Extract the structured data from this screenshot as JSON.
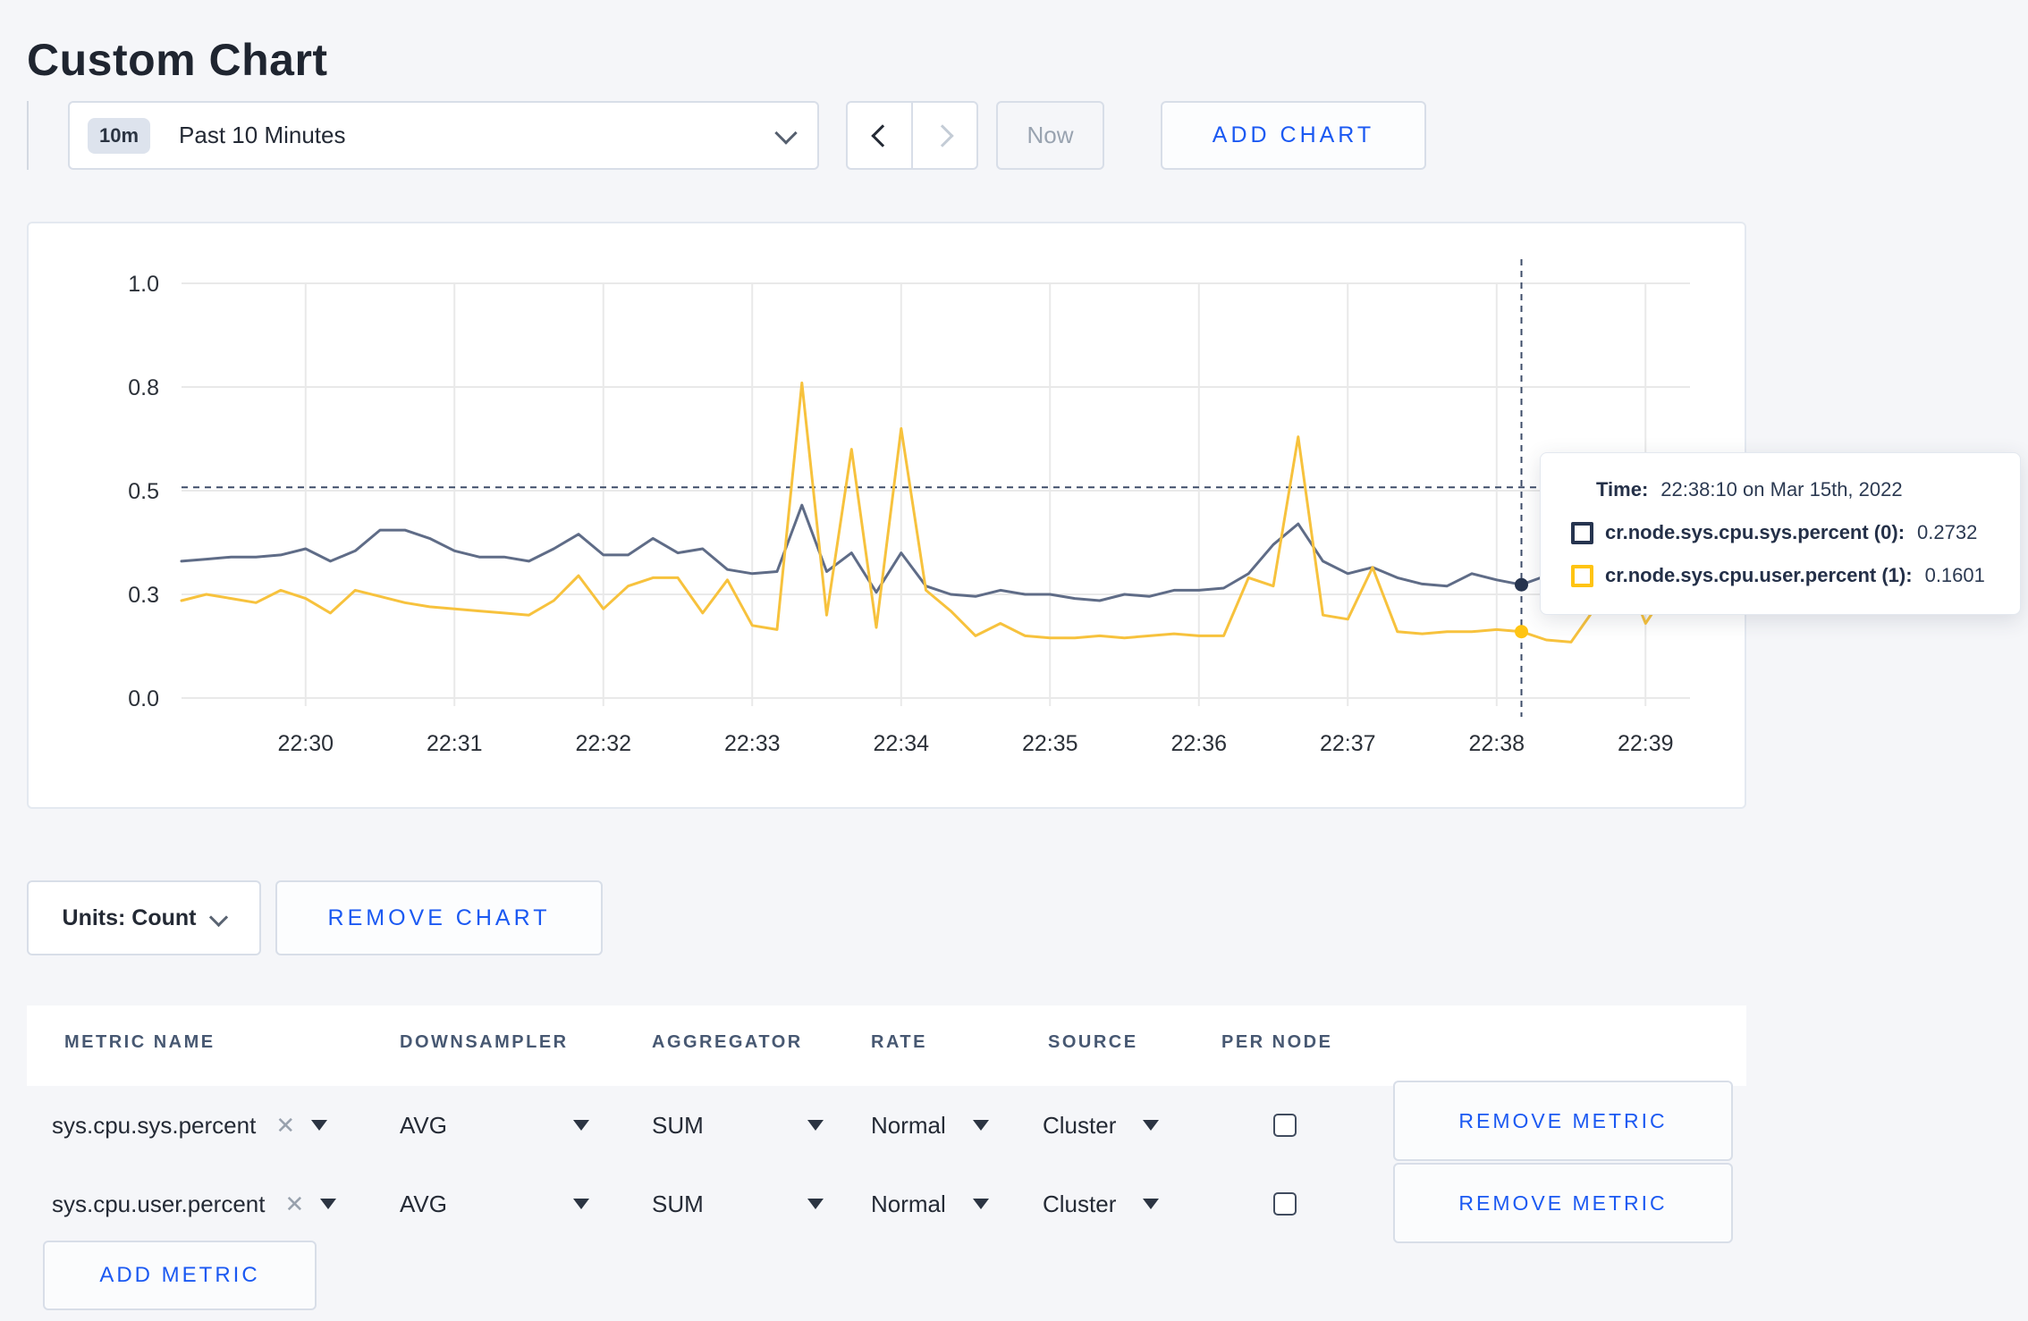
{
  "page": {
    "title": "Custom Chart"
  },
  "colors": {
    "accent_blue": "#1b59f2",
    "crosshair": "#3e4d69",
    "grid": "#e9e9e9"
  },
  "toolbar": {
    "time_selector": {
      "badge": "10m",
      "label": "Past 10 Minutes"
    },
    "now_button": "Now",
    "add_chart_button": "ADD CHART"
  },
  "chart_controls": {
    "units_button": "Units: Count",
    "remove_chart_button": "REMOVE CHART"
  },
  "tooltip": {
    "time_label": "Time:",
    "time_value": "22:38:10 on Mar 15th, 2022",
    "rows": [
      {
        "label": "cr.node.sys.cpu.sys.percent (0):",
        "value": "0.2732"
      },
      {
        "label": "cr.node.sys.cpu.user.percent (1):",
        "value": "0.1601"
      }
    ]
  },
  "metrics_table": {
    "headers": [
      "METRIC NAME",
      "DOWNSAMPLER",
      "AGGREGATOR",
      "RATE",
      "SOURCE",
      "PER NODE"
    ],
    "rows": [
      {
        "metric_name": "sys.cpu.sys.percent",
        "clear": "✕",
        "downsampler": "AVG",
        "aggregator": "SUM",
        "rate": "Normal",
        "source": "Cluster",
        "per_node_checked": false,
        "remove_button": "REMOVE METRIC"
      },
      {
        "metric_name": "sys.cpu.user.percent",
        "clear": "✕",
        "downsampler": "AVG",
        "aggregator": "SUM",
        "rate": "Normal",
        "source": "Cluster",
        "per_node_checked": false,
        "remove_button": "REMOVE METRIC"
      }
    ],
    "add_metric_button": "ADD METRIC"
  },
  "chart_data": {
    "type": "line",
    "title": "",
    "legend": "none",
    "grid": true,
    "x_axis": {
      "domain_seconds": [
        0,
        600
      ],
      "ticks": [
        {
          "label": "22:30",
          "seconds": 50
        },
        {
          "label": "22:31",
          "seconds": 110
        },
        {
          "label": "22:32",
          "seconds": 170
        },
        {
          "label": "22:33",
          "seconds": 230
        },
        {
          "label": "22:34",
          "seconds": 290
        },
        {
          "label": "22:35",
          "seconds": 350
        },
        {
          "label": "22:36",
          "seconds": 410
        },
        {
          "label": "22:37",
          "seconds": 470
        },
        {
          "label": "22:38",
          "seconds": 530
        },
        {
          "label": "22:39",
          "seconds": 590
        }
      ]
    },
    "y_axis": {
      "range": [
        0,
        1
      ],
      "ticks": [
        {
          "label": "0.0",
          "value": 0
        },
        {
          "label": "0.3",
          "value": 0.25
        },
        {
          "label": "0.5",
          "value": 0.5
        },
        {
          "label": "0.8",
          "value": 0.75
        },
        {
          "label": "1.0",
          "value": 1
        }
      ]
    },
    "sample_interval_seconds": 10,
    "series": [
      {
        "name": "cr.node.sys.cpu.sys.percent",
        "color": "#5f6c87",
        "swatch": "#26344f",
        "values": [
          0.33,
          0.335,
          0.34,
          0.34,
          0.345,
          0.36,
          0.33,
          0.355,
          0.405,
          0.405,
          0.385,
          0.355,
          0.34,
          0.34,
          0.33,
          0.36,
          0.395,
          0.345,
          0.345,
          0.385,
          0.35,
          0.36,
          0.31,
          0.3,
          0.305,
          0.465,
          0.305,
          0.35,
          0.255,
          0.35,
          0.27,
          0.25,
          0.245,
          0.26,
          0.25,
          0.25,
          0.24,
          0.235,
          0.25,
          0.245,
          0.26,
          0.26,
          0.265,
          0.3,
          0.37,
          0.42,
          0.33,
          0.3,
          0.315,
          0.29,
          0.275,
          0.27,
          0.3,
          0.285,
          0.2732,
          0.295,
          0.305,
          0.29,
          0.295,
          0.31,
          0.295
        ]
      },
      {
        "name": "cr.node.sys.cpu.user.percent",
        "color": "#f7c23d",
        "swatch": "#ffc412",
        "values": [
          0.235,
          0.25,
          0.24,
          0.23,
          0.26,
          0.24,
          0.205,
          0.26,
          0.245,
          0.23,
          0.22,
          0.215,
          0.21,
          0.205,
          0.2,
          0.235,
          0.295,
          0.215,
          0.27,
          0.29,
          0.29,
          0.205,
          0.285,
          0.175,
          0.165,
          0.76,
          0.2,
          0.6,
          0.17,
          0.65,
          0.26,
          0.21,
          0.15,
          0.18,
          0.15,
          0.145,
          0.145,
          0.15,
          0.145,
          0.15,
          0.155,
          0.15,
          0.15,
          0.29,
          0.27,
          0.63,
          0.2,
          0.19,
          0.315,
          0.16,
          0.155,
          0.16,
          0.16,
          0.165,
          0.1601,
          0.14,
          0.135,
          0.22,
          0.33,
          0.18,
          0.27
        ]
      }
    ],
    "crosshair": {
      "time_seconds": 540,
      "hover_value": 0.508,
      "points": [
        {
          "series": 0,
          "value": 0.2732
        },
        {
          "series": 1,
          "value": 0.1601
        }
      ]
    }
  }
}
